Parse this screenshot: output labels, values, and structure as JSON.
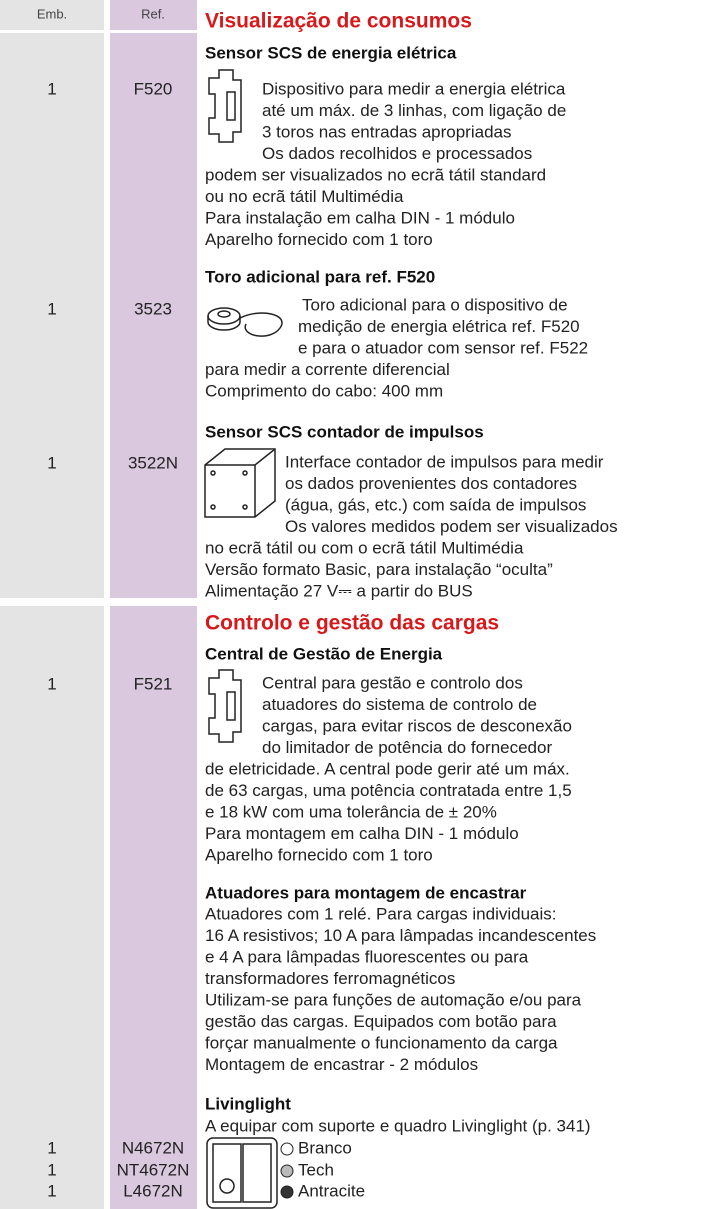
{
  "header": {
    "emb": "Emb.",
    "ref": "Ref."
  },
  "sections": [
    {
      "title": "Visualização de consumos",
      "items": [
        {
          "name": "Sensor SCS de energia elétrica",
          "rows": [
            {
              "emb": "1",
              "ref": "F520"
            }
          ],
          "lines": [
            "Dispositivo para medir a energia elétrica",
            "até um máx. de 3 linhas, com ligação de",
            "3 toros nas entradas apropriadas",
            "Os dados recolhidos e processados",
            "podem ser visualizados no ecrã tátil standard",
            "ou no ecrã tátil Multimédia",
            "Para instalação em calha DIN - 1 módulo",
            "Aparelho fornecido com 1 toro"
          ]
        },
        {
          "name": "Toro adicional para ref. F520",
          "rows": [
            {
              "emb": "1",
              "ref": "3523"
            }
          ],
          "lines": [
            "Toro adicional para o dispositivo de",
            "medição de energia elétrica ref. F520",
            "e para o atuador com sensor ref. F522",
            "para medir a corrente diferencial",
            "Comprimento do cabo: 400 mm"
          ]
        },
        {
          "name": "Sensor SCS contador de impulsos",
          "rows": [
            {
              "emb": "1",
              "ref": "3522N"
            }
          ],
          "lines": [
            "Interface contador de impulsos para medir",
            "os dados provenientes dos contadores",
            "(água, gás, etc.) com saída de impulsos",
            "Os valores medidos podem ser visualizados",
            "no ecrã tátil ou com o ecrã tátil Multimédia",
            "Versão formato Basic, para instalação “oculta”",
            "Alimentação 27 V⎓ a partir do BUS"
          ]
        }
      ]
    },
    {
      "title": "Controlo e gestão das cargas",
      "items": [
        {
          "name": "Central de Gestão de Energia",
          "rows": [
            {
              "emb": "1",
              "ref": "F521"
            }
          ],
          "lines": [
            "Central para gestão e controlo dos",
            "atuadores do sistema de controlo de",
            "cargas, para evitar riscos de desconexão",
            "do limitador de potência do fornecedor",
            "de eletricidade. A central pode gerir até um máx.",
            "de 63 cargas, uma potência contratada entre 1,5",
            "e 18 kW com uma tolerância de ± 20%",
            "Para montagem em calha DIN - 1 módulo",
            "Aparelho fornecido com 1 toro"
          ]
        },
        {
          "name": "Atuadores para montagem de encastrar",
          "rows": [],
          "lines": [
            "Atuadores com 1 relé. Para cargas individuais:",
            "16 A resistivos; 10 A para lâmpadas incandescentes",
            "e 4 A para lâmpadas fluorescentes ou para",
            "transformadores ferromagnéticos",
            "Utilizam-se para funções de automação e/ou para",
            "gestão das cargas. Equipados com botão para",
            "forçar manualmente o funcionamento da carga",
            "Montagem de encastrar - 2 módulos"
          ]
        },
        {
          "name": "Livinglight",
          "rows": [
            {
              "emb": "1",
              "ref": "N4672N",
              "variant": "Branco"
            },
            {
              "emb": "1",
              "ref": "NT4672N",
              "variant": "Tech"
            },
            {
              "emb": "1",
              "ref": "L4672N",
              "variant": "Antracite"
            }
          ],
          "lines": [
            "A equipar com suporte e quadro Livinglight (p. 341)"
          ]
        }
      ]
    }
  ]
}
